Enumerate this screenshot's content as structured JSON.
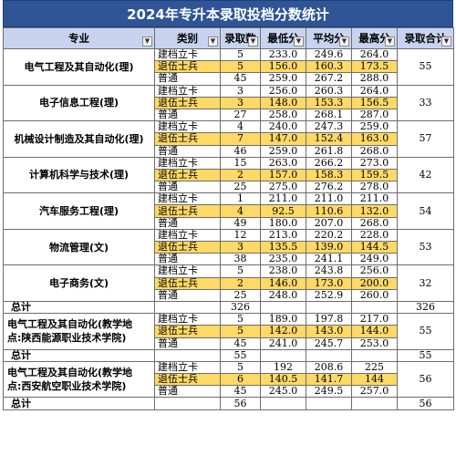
{
  "title": "2024年专升本录取投档分数统计",
  "headers": [
    "专业",
    "类别",
    "录取数",
    "最低分",
    "平均分",
    "最高分",
    "录取合计"
  ],
  "groups": [
    {
      "major": "电气工程及其自动化(理)",
      "total": "55",
      "rows": [
        {
          "cat": "建档立卡",
          "n": "5",
          "min": "233.0",
          "avg": "249.6",
          "max": "264.0"
        },
        {
          "cat": "退伍士兵",
          "n": "5",
          "min": "156.0",
          "avg": "160.3",
          "max": "173.5"
        },
        {
          "cat": "普通",
          "n": "45",
          "min": "259.0",
          "avg": "267.2",
          "max": "288.0"
        }
      ]
    },
    {
      "major": "电子信息工程(理)",
      "total": "33",
      "rows": [
        {
          "cat": "建档立卡",
          "n": "3",
          "min": "256.0",
          "avg": "260.3",
          "max": "264.0"
        },
        {
          "cat": "退伍士兵",
          "n": "3",
          "min": "148.0",
          "avg": "153.3",
          "max": "156.5"
        },
        {
          "cat": "普通",
          "n": "27",
          "min": "258.0",
          "avg": "268.1",
          "max": "287.0"
        }
      ]
    },
    {
      "major": "机械设计制造及其自动化(理)",
      "total": "57",
      "rows": [
        {
          "cat": "建档立卡",
          "n": "4",
          "min": "240.0",
          "avg": "247.3",
          "max": "259.0"
        },
        {
          "cat": "退伍士兵",
          "n": "7",
          "min": "147.0",
          "avg": "152.4",
          "max": "163.0"
        },
        {
          "cat": "普通",
          "n": "46",
          "min": "259.0",
          "avg": "261.8",
          "max": "268.0"
        }
      ]
    },
    {
      "major": "计算机科学与技术(理)",
      "total": "42",
      "rows": [
        {
          "cat": "建档立卡",
          "n": "15",
          "min": "263.0",
          "avg": "266.2",
          "max": "273.0"
        },
        {
          "cat": "退伍士兵",
          "n": "2",
          "min": "157.0",
          "avg": "158.3",
          "max": "159.5"
        },
        {
          "cat": "普通",
          "n": "25",
          "min": "275.0",
          "avg": "276.2",
          "max": "278.0"
        }
      ]
    },
    {
      "major": "汽车服务工程(理)",
      "total": "54",
      "rows": [
        {
          "cat": "建档立卡",
          "n": "1",
          "min": "211.0",
          "avg": "211.0",
          "max": "211.0"
        },
        {
          "cat": "退伍士兵",
          "n": "4",
          "min": "92.5",
          "avg": "110.6",
          "max": "132.0"
        },
        {
          "cat": "普通",
          "n": "49",
          "min": "180.0",
          "avg": "207.0",
          "max": "268.0"
        }
      ]
    },
    {
      "major": "物流管理(文)",
      "total": "53",
      "rows": [
        {
          "cat": "建档立卡",
          "n": "12",
          "min": "213.0",
          "avg": "220.2",
          "max": "228.0"
        },
        {
          "cat": "退伍士兵",
          "n": "3",
          "min": "135.5",
          "avg": "139.0",
          "max": "144.5"
        },
        {
          "cat": "普通",
          "n": "38",
          "min": "235.0",
          "avg": "241.1",
          "max": "249.0"
        }
      ]
    },
    {
      "major": "电子商务(文)",
      "total": "32",
      "rows": [
        {
          "cat": "建档立卡",
          "n": "5",
          "min": "238.0",
          "avg": "243.8",
          "max": "256.0"
        },
        {
          "cat": "退伍士兵",
          "n": "2",
          "min": "146.0",
          "avg": "173.0",
          "max": "200.0"
        },
        {
          "cat": "普通",
          "n": "25",
          "min": "248.0",
          "avg": "252.9",
          "max": "260.0"
        }
      ]
    }
  ],
  "subtotal1": {
    "label": "总计",
    "n": "326",
    "total": "326"
  },
  "group8": {
    "major_line1": "电气工程及其自动化(教学地",
    "major_line2": "点:陕西能源职业技术学院)",
    "total": "55",
    "rows": [
      {
        "cat": "建档立卡",
        "n": "5",
        "min": "189.0",
        "avg": "197.8",
        "max": "217.0"
      },
      {
        "cat": "退伍士兵",
        "n": "5",
        "min": "142.0",
        "avg": "143.0",
        "max": "144.0"
      },
      {
        "cat": "普通",
        "n": "45",
        "min": "241.0",
        "avg": "245.7",
        "max": "253.0"
      }
    ]
  },
  "subtotal2": {
    "label": "总计",
    "n": "55",
    "total": "55"
  },
  "group9": {
    "major_line1": "电气工程及其自动化(教学地",
    "major_line2": "点:西安航空职业技术学院)",
    "total": "56",
    "rows": [
      {
        "cat": "建档立卡",
        "n": "5",
        "min": "192",
        "avg": "208.6",
        "max": "225"
      },
      {
        "cat": "退伍士兵",
        "n": "6",
        "min": "140.5",
        "avg": "141.7",
        "max": "144"
      },
      {
        "cat": "普通",
        "n": "45",
        "min": "245.0",
        "avg": "249.5",
        "max": "257.0"
      }
    ]
  },
  "subtotal3": {
    "label": "总计",
    "n": "56",
    "total": "56"
  },
  "colors": {
    "title_bg": "#2f5597",
    "header_bg": "#c8d4ef",
    "veteran_highlight": "#ffd966"
  }
}
